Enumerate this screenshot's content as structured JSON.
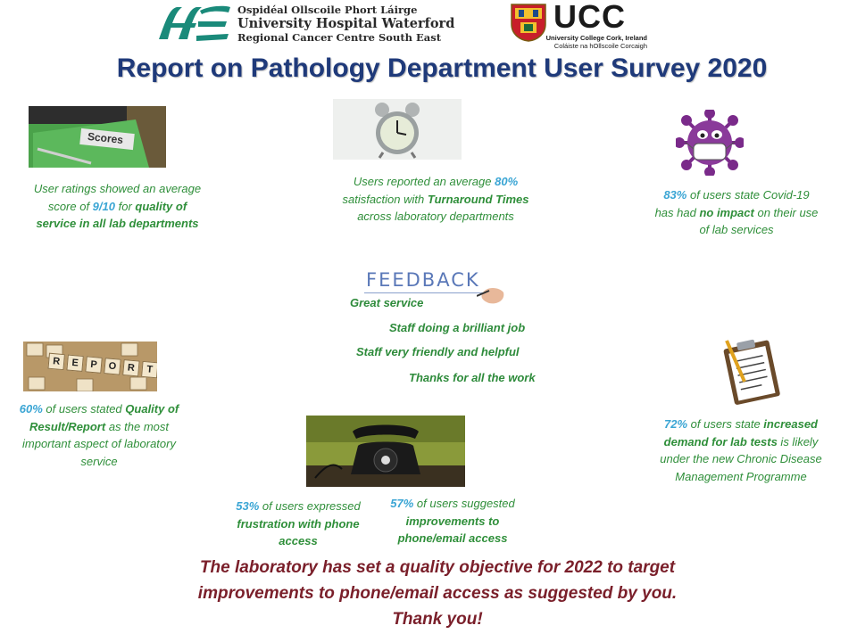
{
  "header": {
    "hse_logo_text": "HSE",
    "hospital_lines": [
      "Ospidéal Ollscoile Phort Láirge",
      "University Hospital Waterford",
      "Regional Cancer Centre South East"
    ],
    "ucc_name": "UCC",
    "ucc_sub": [
      "University College Cork, Ireland",
      "Coláiste na hOllscoile Corcaigh"
    ]
  },
  "title": "Report on Pathology Department User Survey 2020",
  "images": {
    "scores_label": "Scores",
    "report_tiles": [
      "R",
      "E",
      "P",
      "O",
      "R",
      "T"
    ],
    "feedback_word": "FEEDBACK"
  },
  "stats": {
    "ratings": {
      "pre": "User ratings showed an average score of ",
      "value": "9/10",
      "mid": " for ",
      "bold": "quality of service in all lab departments"
    },
    "turnaround": {
      "pre": "Users reported an average ",
      "value": "80%",
      "mid": " satisfaction  with ",
      "bold": "Turnaround Times",
      "post": " across laboratory departments"
    },
    "covid": {
      "value": "83%",
      "mid": " of users state Covid-19 has had ",
      "bold": "no impact",
      "post": " on their use of lab services"
    },
    "quality": {
      "value": "60%",
      "mid": " of users stated ",
      "bold": "Quality of Result/Report",
      "post": " as the most important aspect of laboratory  service"
    },
    "frustration": {
      "value": "53%",
      "mid": " of users expressed ",
      "bold": "frustration with phone access"
    },
    "improvements": {
      "value": "57%",
      "mid": " of users suggested ",
      "bold": "improvements to phone/email access"
    },
    "demand": {
      "value": "72%",
      "mid": " of users state ",
      "bold": "increased demand for lab tests",
      "post": " is likely under the new Chronic Disease Management Programme"
    }
  },
  "feedback": [
    "Great service",
    "Staff doing a brilliant job",
    "Staff very friendly and helpful",
    "Thanks for all the work"
  ],
  "closing": [
    "The laboratory has set a quality objective for 2022 to target",
    "improvements to phone/email access as suggested by you.",
    "Thank you!"
  ],
  "colors": {
    "title": "#1f3a7a",
    "stat_text": "#2f8f3a",
    "highlight": "#3aa5d4",
    "closing": "#7a1f2a"
  }
}
